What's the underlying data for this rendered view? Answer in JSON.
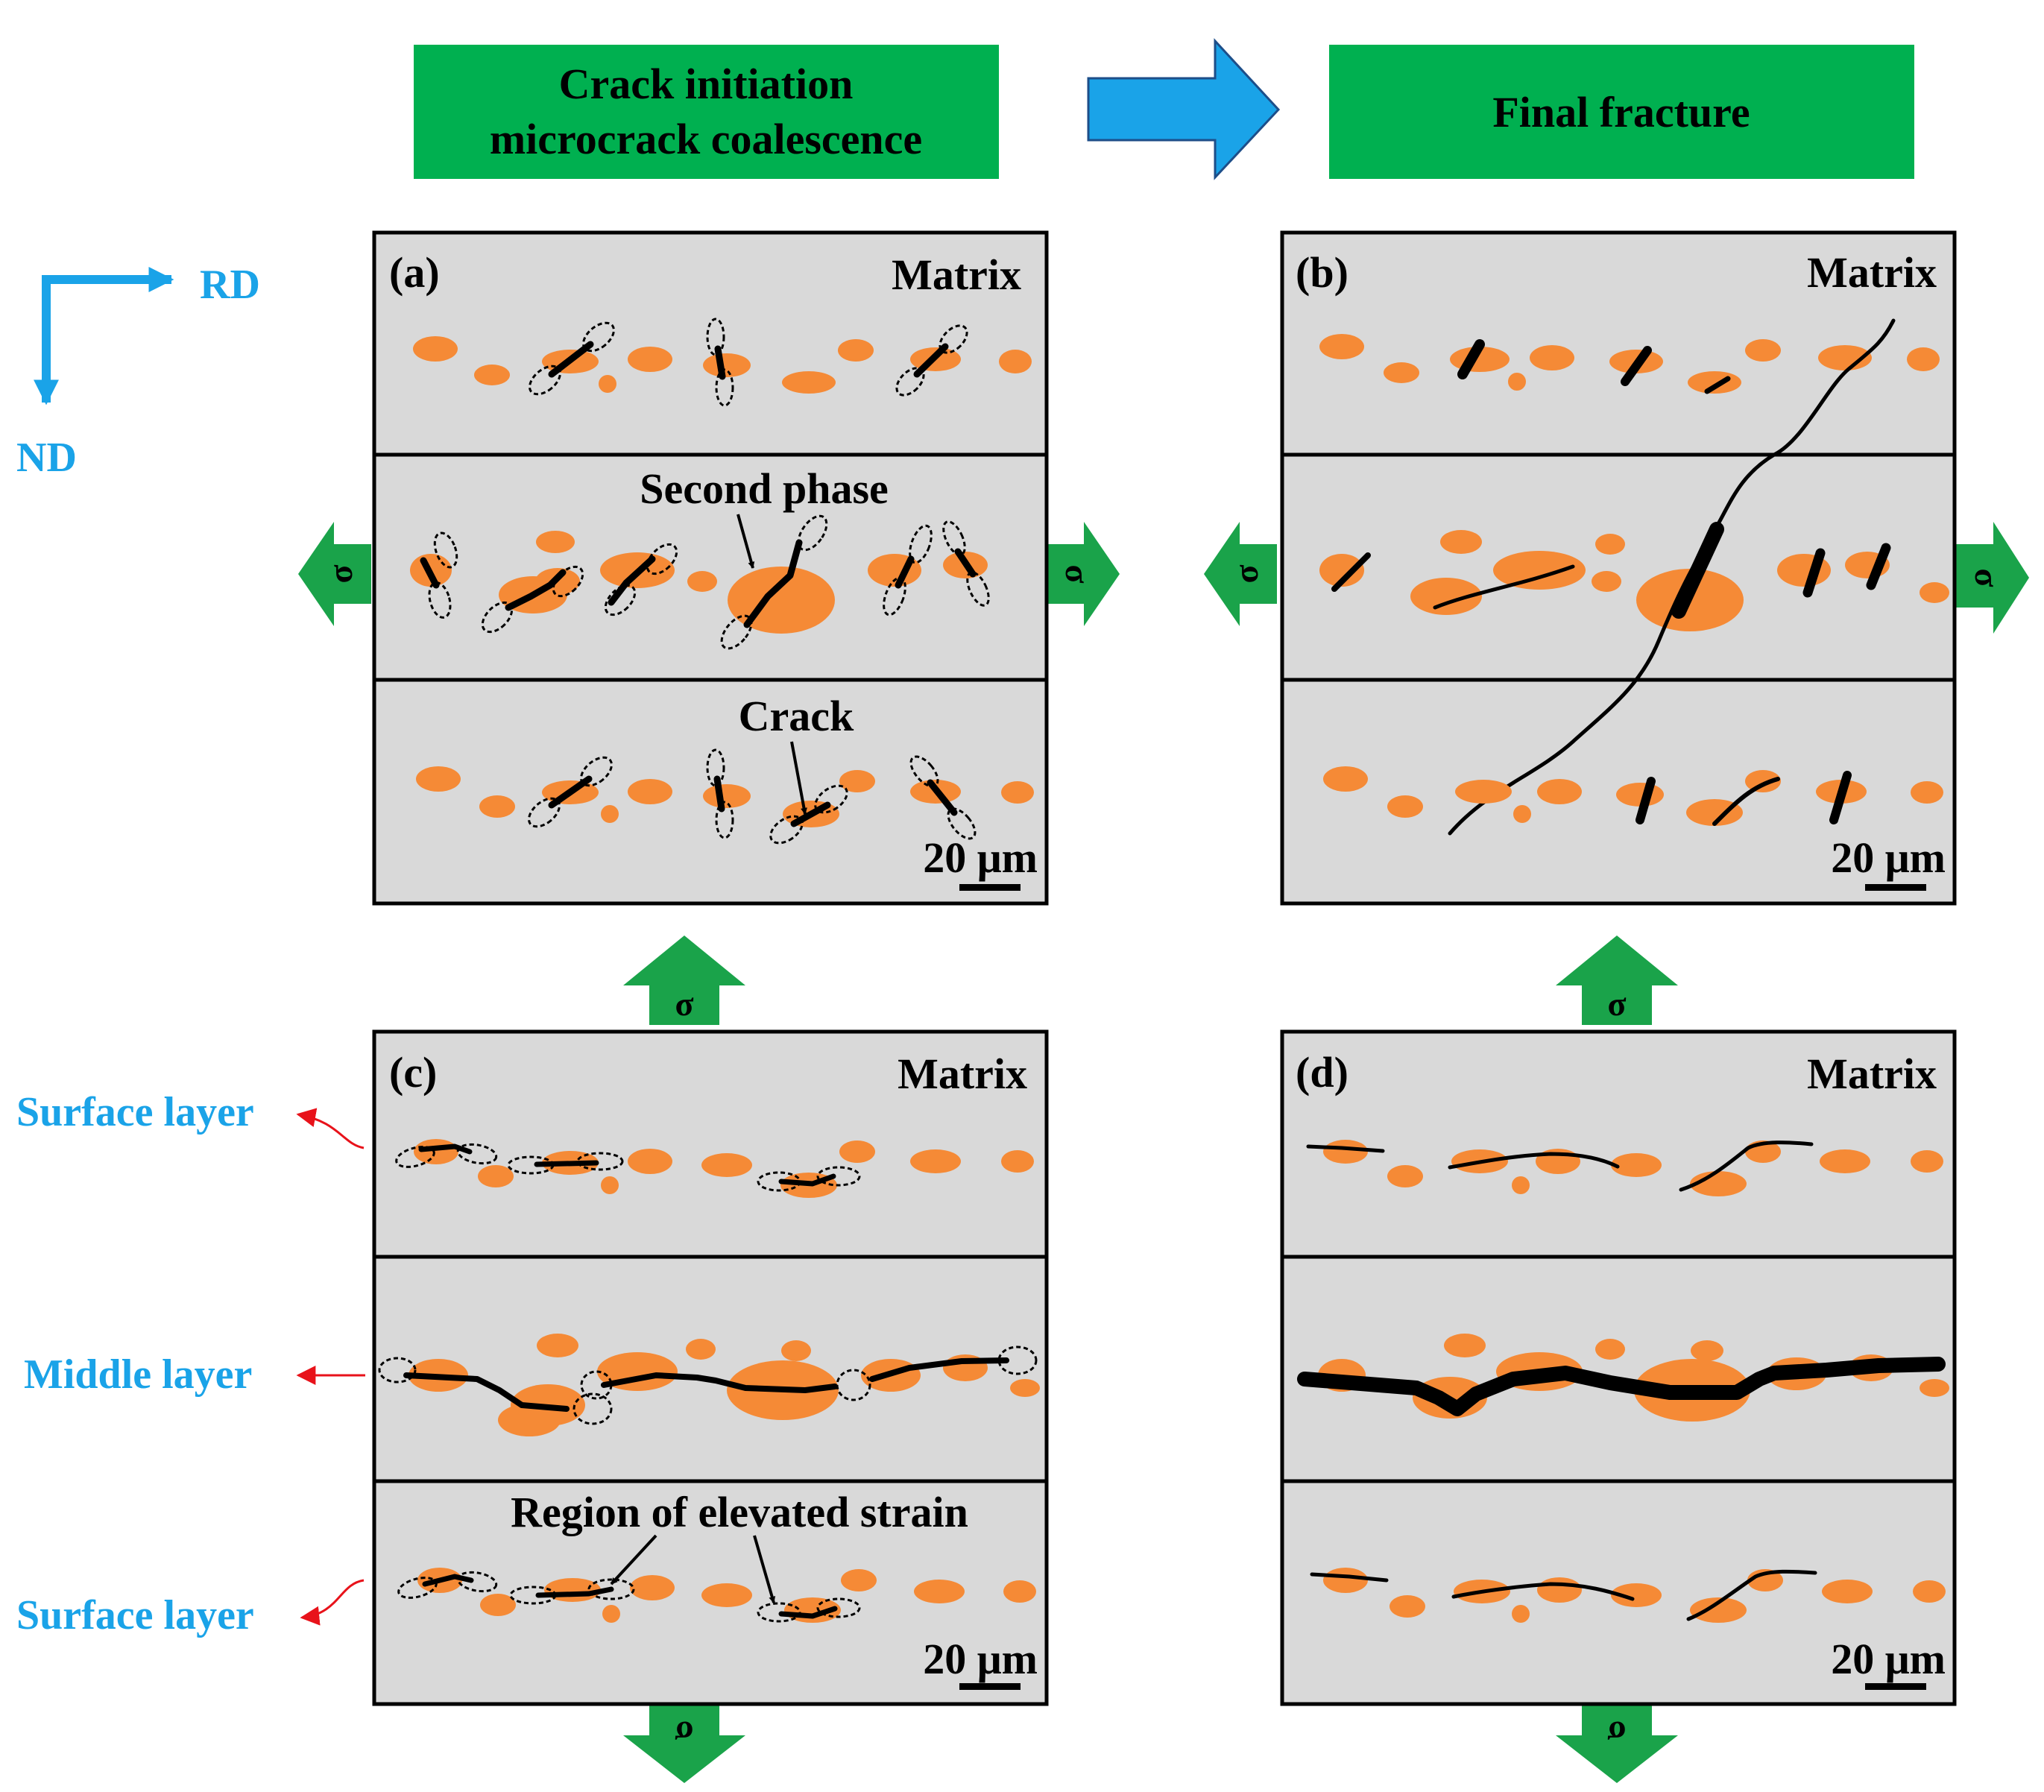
{
  "header": {
    "left_line1": "Crack initiation",
    "left_line2": "microcrack coalescence",
    "right": "Final fracture"
  },
  "axes": {
    "rd": "RD",
    "nd": "ND"
  },
  "stress_symbol": "σ",
  "panels": {
    "a": {
      "label": "(a)",
      "matrix": "Matrix",
      "scale": "20 μm",
      "second_phase": "Second phase",
      "crack": "Crack"
    },
    "b": {
      "label": "(b)",
      "matrix": "Matrix",
      "scale": "20 μm"
    },
    "c": {
      "label": "(c)",
      "matrix": "Matrix",
      "scale": "20 μm",
      "strain": "Region of elevated strain"
    },
    "d": {
      "label": "(d)",
      "matrix": "Matrix",
      "scale": "20 μm"
    }
  },
  "layers": {
    "surface_top": "Surface layer",
    "middle": "Middle layer",
    "surface_bottom": "Surface layer"
  },
  "colors": {
    "header_green": "#00b050",
    "arrow_green": "#1aa34a",
    "arrow_blue": "#1aa3e8",
    "phase_orange": "#f58a36",
    "matrix_gray": "#d9d9d9",
    "side_label_blue": "#1aa3e8",
    "pointer_red": "#e8121a"
  }
}
